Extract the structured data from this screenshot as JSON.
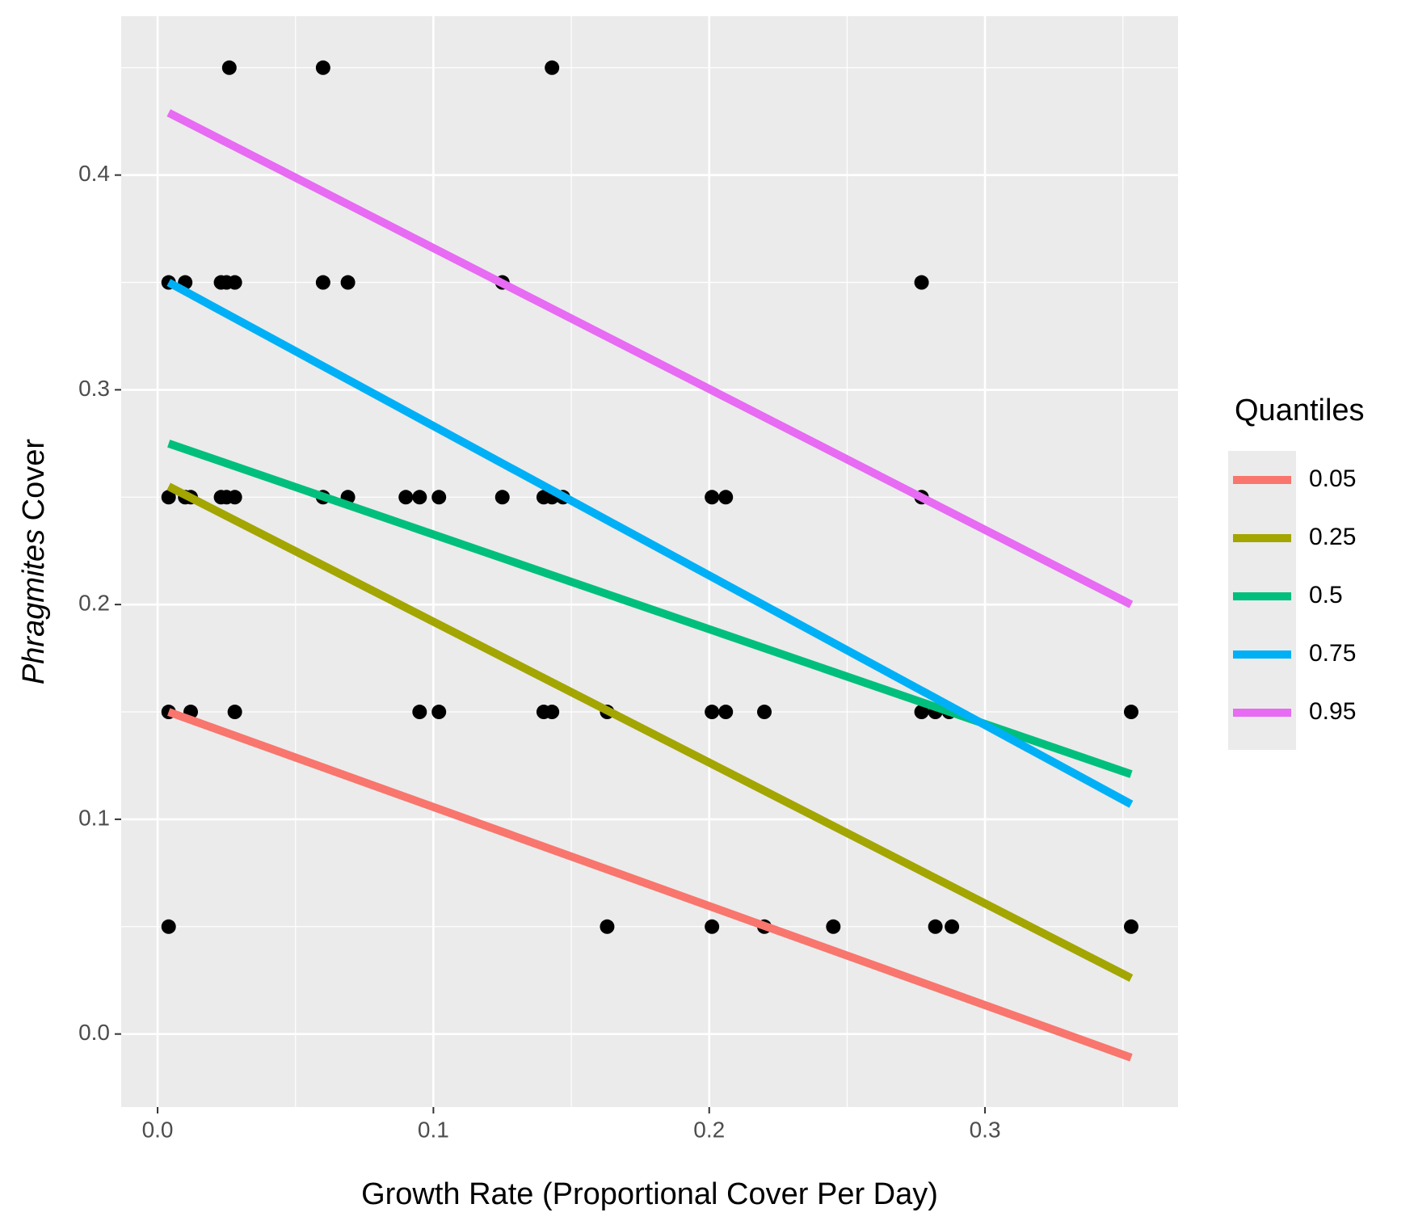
{
  "chart_data": {
    "type": "scatter",
    "x_label": "Growth Rate (Proportional Cover Per Day)",
    "y_label": [
      "Phragmites",
      "Cover"
    ],
    "legend_title": "Quantiles",
    "legend_position": "right",
    "grid": true,
    "panel_color": "#ebebeb",
    "point_color": "#000000",
    "xlim": [
      -0.0132,
      0.37
    ],
    "ylim": [
      -0.034,
      0.474
    ],
    "xticks": [
      {
        "value": 0,
        "label": "0.0"
      },
      0.1,
      0.2,
      0.3
    ],
    "yticks": [
      {
        "value": 0,
        "label": "0.0"
      },
      0.1,
      0.2,
      0.3,
      0.4
    ],
    "x_minor_ticks": [
      0.05,
      0.15,
      0.25,
      0.35
    ],
    "y_minor_ticks": [
      0.05,
      0.15,
      0.25,
      0.35,
      0.45
    ],
    "x": [
      0.026,
      0.06,
      0.143,
      0.004,
      0.01,
      0.023,
      0.025,
      0.028,
      0.06,
      0.069,
      0.125,
      0.277,
      0.004,
      0.01,
      0.012,
      0.023,
      0.025,
      0.028,
      0.06,
      0.069,
      0.09,
      0.095,
      0.102,
      0.125,
      0.14,
      0.143,
      0.147,
      0.201,
      0.206,
      0.277,
      0.004,
      0.012,
      0.028,
      0.095,
      0.102,
      0.14,
      0.143,
      0.163,
      0.201,
      0.206,
      0.22,
      0.277,
      0.282,
      0.287,
      0.353,
      0.004,
      0.163,
      0.201,
      0.22,
      0.245,
      0.282,
      0.288,
      0.353
    ],
    "values": [
      0.45,
      0.45,
      0.45,
      0.35,
      0.35,
      0.35,
      0.35,
      0.35,
      0.35,
      0.35,
      0.35,
      0.35,
      0.25,
      0.25,
      0.25,
      0.25,
      0.25,
      0.25,
      0.25,
      0.25,
      0.25,
      0.25,
      0.25,
      0.25,
      0.25,
      0.25,
      0.25,
      0.25,
      0.25,
      0.25,
      0.15,
      0.15,
      0.15,
      0.15,
      0.15,
      0.15,
      0.15,
      0.15,
      0.15,
      0.15,
      0.15,
      0.15,
      0.15,
      0.15,
      0.15,
      0.05,
      0.05,
      0.05,
      0.05,
      0.05,
      0.05,
      0.05,
      0.05
    ],
    "series": [
      {
        "name": "0.05",
        "color": "#F8766D",
        "x": [
          0.004,
          0.353
        ],
        "values": [
          0.15,
          -0.011
        ]
      },
      {
        "name": "0.25",
        "color": "#A3A500",
        "x": [
          0.004,
          0.353
        ],
        "values": [
          0.255,
          0.026
        ]
      },
      {
        "name": "0.5",
        "color": "#00BF7D",
        "x": [
          0.004,
          0.353
        ],
        "values": [
          0.275,
          0.121
        ]
      },
      {
        "name": "0.75",
        "color": "#00B0F6",
        "x": [
          0.004,
          0.353
        ],
        "values": [
          0.35,
          0.107
        ]
      },
      {
        "name": "0.95",
        "color": "#E76BF3",
        "x": [
          0.004,
          0.353
        ],
        "values": [
          0.429,
          0.2
        ]
      }
    ]
  }
}
